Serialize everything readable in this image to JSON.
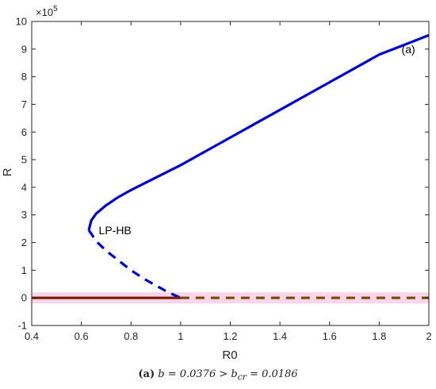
{
  "chart_data": {
    "type": "line",
    "xlabel": "R0",
    "ylabel": "R",
    "xlim": [
      0.4,
      2.0
    ],
    "ylim": [
      -1,
      10
    ],
    "y_scale_exponent": "×10^5",
    "x_ticks": [
      "0.4",
      "0.6",
      "0.8",
      "1",
      "1.2",
      "1.4",
      "1.6",
      "1.8",
      "2"
    ],
    "y_ticks": [
      "-1",
      "0",
      "1",
      "2",
      "3",
      "4",
      "5",
      "6",
      "7",
      "8",
      "9",
      "10"
    ],
    "series": [
      {
        "style": "solid",
        "color": "#0000cc",
        "x": [
          0.63,
          0.64,
          0.66,
          0.7,
          0.75,
          0.8,
          0.9,
          1.0,
          1.1,
          1.2,
          1.3,
          1.4,
          1.5,
          1.6,
          1.7,
          1.8,
          1.9,
          2.0
        ],
        "y": [
          2.45,
          2.8,
          3.05,
          3.35,
          3.65,
          3.9,
          4.35,
          4.8,
          5.3,
          5.8,
          6.3,
          6.8,
          7.3,
          7.8,
          8.3,
          8.8,
          9.15,
          9.5
        ]
      },
      {
        "style": "dashed",
        "color": "#0000cc",
        "x": [
          0.63,
          0.66,
          0.7,
          0.75,
          0.8,
          0.85,
          0.9,
          0.95,
          1.0
        ],
        "y": [
          2.45,
          2.05,
          1.7,
          1.35,
          1.0,
          0.7,
          0.45,
          0.2,
          0.0
        ]
      },
      {
        "style": "solid",
        "color": "#7a1a00",
        "x": [
          0.4,
          1.0
        ],
        "y": [
          0,
          0
        ]
      },
      {
        "style": "dashed",
        "color": "#7a4a00",
        "x": [
          1.0,
          2.0
        ],
        "y": [
          0,
          0
        ]
      }
    ],
    "band": {
      "x": [
        0.4,
        2.0
      ],
      "y": [
        -0.2,
        0.2
      ],
      "color": "#f9d5ea"
    },
    "annotations": [
      {
        "text": "LP-HB",
        "x": 0.67,
        "y": 2.45
      },
      {
        "text": "(a)",
        "x": 1.89,
        "y": 9.0
      }
    ],
    "grid": false
  },
  "caption": {
    "tag": "(a)",
    "formula": "b = 0.0376 > b_cr = 0.0186"
  }
}
